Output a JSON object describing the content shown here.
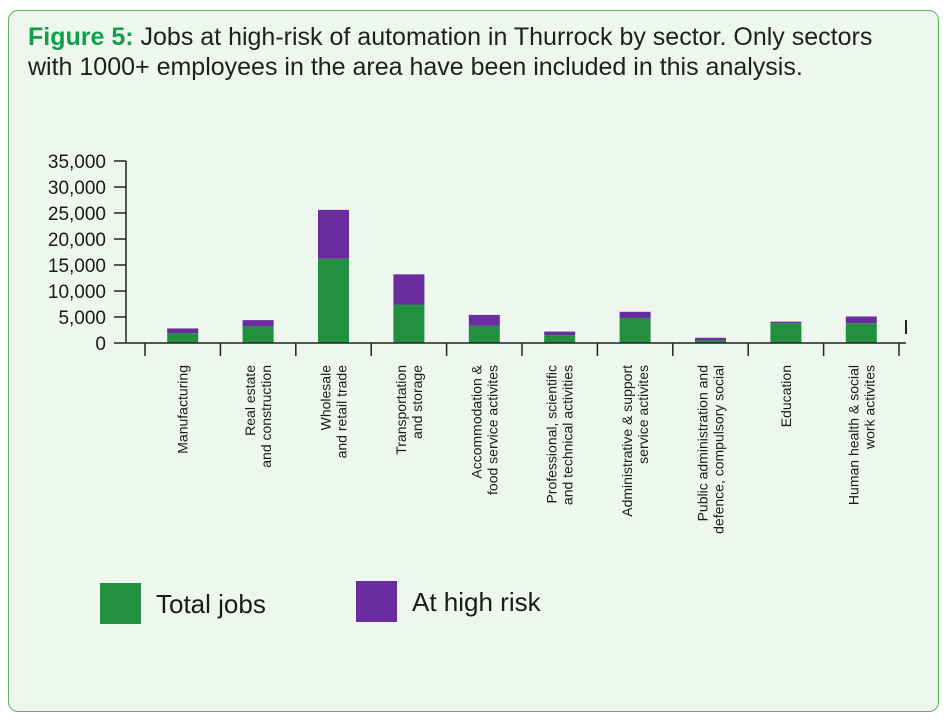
{
  "caption": {
    "label": "Figure 5:",
    "text": " Jobs at high-risk of automation in Thurrock by sector. Only sectors with 1000+ employees in the area have been included in this analysis."
  },
  "colors": {
    "total": "#22903e",
    "risk": "#6a2c9e",
    "panel_bg": "#edf7ed",
    "panel_border": "#57b35e",
    "caption_label": "#10a049"
  },
  "chart_data": {
    "type": "bar",
    "stacked": true,
    "title": "",
    "xlabel": "",
    "ylabel": "",
    "ylim": [
      0,
      35000
    ],
    "yticks": [
      "0",
      "5,000",
      "10,000",
      "15,000",
      "20,000",
      "25,000",
      "30,000",
      "35,000"
    ],
    "ytick_values": [
      0,
      5000,
      10000,
      15000,
      20000,
      25000,
      30000,
      35000
    ],
    "categories": [
      [
        "Manufacturing"
      ],
      [
        "Real estate",
        "and construction"
      ],
      [
        "Wholesale",
        "and retail trade"
      ],
      [
        "Transportation",
        "and storage"
      ],
      [
        "Accommodation &",
        "food service activites"
      ],
      [
        "Professional, scientific",
        "and technical activities"
      ],
      [
        "Administrative & support",
        "service activites"
      ],
      [
        "Public administration and",
        "defence, compulsory social"
      ],
      [
        "Education"
      ],
      [
        "Human  health & social",
        "work activites"
      ]
    ],
    "series": [
      {
        "name": "Total jobs",
        "values": [
          1900,
          3200,
          16200,
          7400,
          3300,
          1500,
          4800,
          500,
          3800,
          3800
        ]
      },
      {
        "name": "At high risk",
        "values": [
          900,
          1200,
          9400,
          5800,
          2100,
          700,
          1200,
          500,
          300,
          1300
        ]
      }
    ],
    "legend": {
      "position": "bottom-left",
      "items": [
        "Total jobs",
        "At high risk"
      ]
    }
  }
}
